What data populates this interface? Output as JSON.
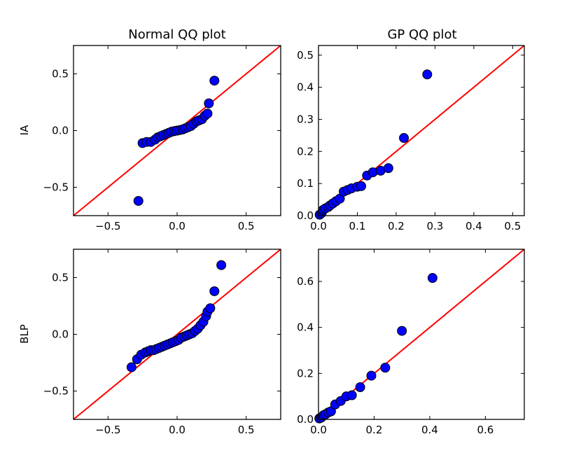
{
  "column_titles": [
    "Normal QQ plot",
    "GP QQ plot"
  ],
  "row_labels": [
    "IA",
    "BLP"
  ],
  "colors": {
    "points": "#0000ff",
    "reference_line": "#ff0000",
    "frame": "#000000"
  },
  "chart_data": [
    {
      "type": "scatter",
      "title": "Normal QQ plot",
      "ylabel": "IA",
      "xlim": [
        -0.75,
        0.75
      ],
      "ylim": [
        -0.75,
        0.75
      ],
      "xticks": [
        -0.5,
        0.0,
        0.5
      ],
      "xtick_labels": [
        "−0.5",
        "0.0",
        "0.5"
      ],
      "yticks": [
        -0.5,
        0.0,
        0.5
      ],
      "ytick_labels": [
        "−0.5",
        "0.0",
        "0.5"
      ],
      "reference_line": "y = x",
      "points": [
        [
          -0.28,
          -0.62
        ],
        [
          -0.25,
          -0.11
        ],
        [
          -0.22,
          -0.1
        ],
        [
          -0.19,
          -0.1
        ],
        [
          -0.16,
          -0.08
        ],
        [
          -0.14,
          -0.06
        ],
        [
          -0.12,
          -0.05
        ],
        [
          -0.1,
          -0.04
        ],
        [
          -0.08,
          -0.03
        ],
        [
          -0.06,
          -0.02
        ],
        [
          -0.04,
          -0.01
        ],
        [
          -0.02,
          -0.005
        ],
        [
          0.0,
          0.0
        ],
        [
          0.02,
          0.005
        ],
        [
          0.04,
          0.01
        ],
        [
          0.06,
          0.02
        ],
        [
          0.08,
          0.03
        ],
        [
          0.1,
          0.04
        ],
        [
          0.12,
          0.06
        ],
        [
          0.14,
          0.08
        ],
        [
          0.16,
          0.09
        ],
        [
          0.18,
          0.1
        ],
        [
          0.2,
          0.13
        ],
        [
          0.22,
          0.15
        ],
        [
          0.23,
          0.24
        ],
        [
          0.27,
          0.44
        ]
      ]
    },
    {
      "type": "scatter",
      "title": "GP QQ plot",
      "ylabel": "",
      "xlim": [
        0.0,
        0.53
      ],
      "ylim": [
        0.0,
        0.53
      ],
      "xticks": [
        0.0,
        0.1,
        0.2,
        0.3,
        0.4,
        0.5
      ],
      "xtick_labels": [
        "0.0",
        "0.1",
        "0.2",
        "0.3",
        "0.4",
        "0.5"
      ],
      "yticks": [
        0.0,
        0.1,
        0.2,
        0.3,
        0.4,
        0.5
      ],
      "ytick_labels": [
        "0.0",
        "0.1",
        "0.2",
        "0.3",
        "0.4",
        "0.5"
      ],
      "reference_line": "y = x",
      "points": [
        [
          0.003,
          0.003
        ],
        [
          0.008,
          0.008
        ],
        [
          0.012,
          0.018
        ],
        [
          0.017,
          0.022
        ],
        [
          0.025,
          0.027
        ],
        [
          0.03,
          0.032
        ],
        [
          0.037,
          0.038
        ],
        [
          0.045,
          0.045
        ],
        [
          0.055,
          0.053
        ],
        [
          0.065,
          0.075
        ],
        [
          0.075,
          0.08
        ],
        [
          0.085,
          0.085
        ],
        [
          0.1,
          0.09
        ],
        [
          0.11,
          0.092
        ],
        [
          0.125,
          0.125
        ],
        [
          0.14,
          0.135
        ],
        [
          0.16,
          0.14
        ],
        [
          0.18,
          0.148
        ],
        [
          0.22,
          0.242
        ],
        [
          0.28,
          0.44
        ]
      ]
    },
    {
      "type": "scatter",
      "title": "",
      "ylabel": "BLP",
      "xlim": [
        -0.75,
        0.75
      ],
      "ylim": [
        -0.75,
        0.75
      ],
      "xticks": [
        -0.5,
        0.0,
        0.5
      ],
      "xtick_labels": [
        "−0.5",
        "0.0",
        "0.5"
      ],
      "yticks": [
        -0.5,
        0.0,
        0.5
      ],
      "ytick_labels": [
        "−0.5",
        "0.0",
        "0.5"
      ],
      "reference_line": "y = x",
      "points": [
        [
          -0.33,
          -0.29
        ],
        [
          -0.29,
          -0.22
        ],
        [
          -0.26,
          -0.18
        ],
        [
          -0.23,
          -0.16
        ],
        [
          -0.21,
          -0.15
        ],
        [
          -0.19,
          -0.14
        ],
        [
          -0.17,
          -0.14
        ],
        [
          -0.15,
          -0.13
        ],
        [
          -0.13,
          -0.12
        ],
        [
          -0.11,
          -0.11
        ],
        [
          -0.09,
          -0.1
        ],
        [
          -0.07,
          -0.09
        ],
        [
          -0.05,
          -0.08
        ],
        [
          -0.03,
          -0.07
        ],
        [
          -0.01,
          -0.06
        ],
        [
          0.01,
          -0.05
        ],
        [
          0.03,
          -0.03
        ],
        [
          0.05,
          -0.02
        ],
        [
          0.07,
          -0.01
        ],
        [
          0.09,
          0.0
        ],
        [
          0.11,
          0.01
        ],
        [
          0.13,
          0.03
        ],
        [
          0.15,
          0.05
        ],
        [
          0.17,
          0.08
        ],
        [
          0.19,
          0.11
        ],
        [
          0.21,
          0.16
        ],
        [
          0.22,
          0.2
        ],
        [
          0.24,
          0.23
        ],
        [
          0.27,
          0.38
        ],
        [
          0.32,
          0.61
        ]
      ]
    },
    {
      "type": "scatter",
      "title": "",
      "ylabel": "",
      "xlim": [
        0.0,
        0.74
      ],
      "ylim": [
        0.0,
        0.74
      ],
      "xticks": [
        0.0,
        0.2,
        0.4,
        0.6
      ],
      "xtick_labels": [
        "0.0",
        "0.2",
        "0.4",
        "0.6"
      ],
      "yticks": [
        0.0,
        0.2,
        0.4,
        0.6
      ],
      "ytick_labels": [
        "0.0",
        "0.2",
        "0.4",
        "0.6"
      ],
      "reference_line": "y = x",
      "points": [
        [
          0.003,
          0.004
        ],
        [
          0.01,
          0.008
        ],
        [
          0.018,
          0.018
        ],
        [
          0.025,
          0.022
        ],
        [
          0.035,
          0.03
        ],
        [
          0.045,
          0.035
        ],
        [
          0.06,
          0.065
        ],
        [
          0.08,
          0.08
        ],
        [
          0.1,
          0.1
        ],
        [
          0.12,
          0.105
        ],
        [
          0.15,
          0.14
        ],
        [
          0.19,
          0.19
        ],
        [
          0.24,
          0.225
        ],
        [
          0.3,
          0.385
        ],
        [
          0.41,
          0.615
        ]
      ]
    }
  ]
}
